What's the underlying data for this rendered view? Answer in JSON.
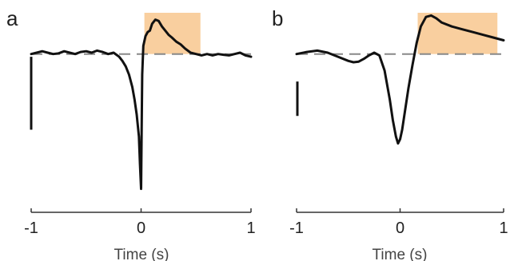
{
  "colors": {
    "trace": "#111111",
    "baseline": "#888888",
    "highlight": "#f9cf9f",
    "axis": "#333333"
  },
  "chart_data": [
    {
      "type": "line",
      "panel_label": "a",
      "title": "",
      "xlabel": "Time (s)",
      "ylabel": "",
      "xlim": [
        -1,
        1
      ],
      "ylim": [
        -1.0,
        0.3
      ],
      "x_ticks": [
        -1,
        0,
        1
      ],
      "x_tick_labels": [
        "-1",
        "0",
        "1"
      ],
      "grid": false,
      "baseline_y": 0,
      "highlight_window": [
        0.03,
        0.54
      ],
      "scale_bar": [
        -0.55,
        -0.02
      ],
      "series": [
        {
          "x": [
            -1.0,
            -0.95,
            -0.9,
            -0.85,
            -0.8,
            -0.75,
            -0.7,
            -0.65,
            -0.6,
            -0.55,
            -0.5,
            -0.45,
            -0.4,
            -0.35,
            -0.3,
            -0.25,
            -0.2,
            -0.17,
            -0.14,
            -0.11,
            -0.08,
            -0.06,
            -0.04,
            -0.02,
            -0.01,
            0.0,
            0.005,
            0.01,
            0.02,
            0.04,
            0.06,
            0.08,
            0.1,
            0.13,
            0.16,
            0.19,
            0.22,
            0.25,
            0.28,
            0.32,
            0.36,
            0.4,
            0.45,
            0.5,
            0.55,
            0.6,
            0.65,
            0.7,
            0.75,
            0.8,
            0.85,
            0.9,
            0.95,
            1.0
          ],
          "y": [
            0.0,
            0.01,
            0.02,
            0.01,
            0.0,
            0.005,
            0.02,
            0.01,
            0.0,
            0.015,
            0.02,
            0.01,
            0.025,
            0.015,
            0.0,
            0.01,
            -0.02,
            -0.05,
            -0.09,
            -0.15,
            -0.24,
            -0.33,
            -0.44,
            -0.6,
            -0.8,
            -0.98,
            -0.55,
            -0.15,
            0.06,
            0.13,
            0.16,
            0.17,
            0.22,
            0.25,
            0.24,
            0.2,
            0.17,
            0.14,
            0.12,
            0.09,
            0.07,
            0.04,
            0.01,
            0.0,
            -0.01,
            0.0,
            -0.01,
            0.0,
            -0.005,
            -0.01,
            0.0,
            0.01,
            -0.01,
            -0.02
          ]
        }
      ]
    },
    {
      "type": "line",
      "panel_label": "b",
      "title": "",
      "xlabel": "Time (s)",
      "ylabel": "",
      "xlim": [
        -1,
        1
      ],
      "ylim": [
        -1.0,
        0.3
      ],
      "x_ticks": [
        -1,
        0,
        1
      ],
      "x_tick_labels": [
        "-1",
        "0",
        "1"
      ],
      "grid": false,
      "baseline_y": 0,
      "highlight_window": [
        0.17,
        0.94
      ],
      "scale_bar": [
        -0.45,
        -0.2
      ],
      "series": [
        {
          "x": [
            -1.0,
            -0.9,
            -0.8,
            -0.7,
            -0.6,
            -0.5,
            -0.45,
            -0.4,
            -0.35,
            -0.3,
            -0.25,
            -0.2,
            -0.15,
            -0.1,
            -0.07,
            -0.04,
            -0.02,
            0.0,
            0.02,
            0.05,
            0.08,
            0.12,
            0.16,
            0.2,
            0.25,
            0.3,
            0.35,
            0.4,
            0.5,
            0.6,
            0.7,
            0.8,
            0.9,
            1.0
          ],
          "y": [
            0.0,
            0.015,
            0.025,
            0.01,
            -0.02,
            -0.05,
            -0.06,
            -0.055,
            -0.035,
            -0.01,
            0.01,
            -0.01,
            -0.12,
            -0.33,
            -0.48,
            -0.6,
            -0.65,
            -0.62,
            -0.55,
            -0.4,
            -0.25,
            -0.08,
            0.08,
            0.2,
            0.27,
            0.28,
            0.26,
            0.23,
            0.2,
            0.18,
            0.16,
            0.14,
            0.12,
            0.1
          ]
        }
      ]
    }
  ]
}
